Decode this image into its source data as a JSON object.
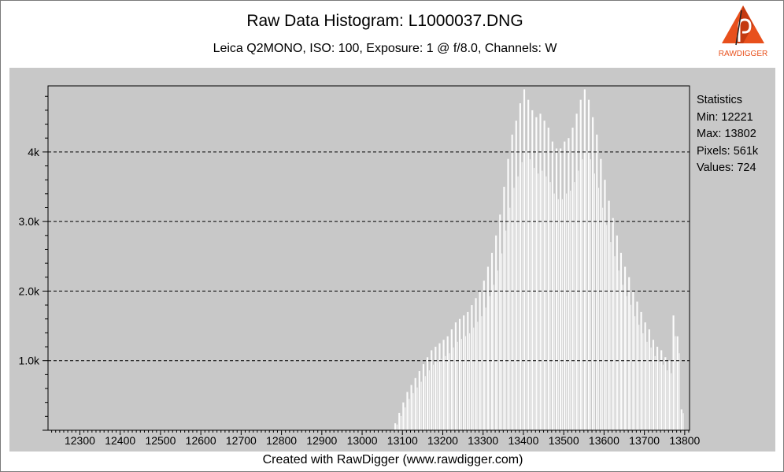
{
  "window": {
    "title": "Raw Data Histogram: L1000037.DNG",
    "subtitle": "Leica Q2MONO, ISO: 100, Exposure: 1 @ f/8.0, Channels: W",
    "footer": "Created with RawDigger (www.rawdigger.com)",
    "logo_text": "RAWDIGGER"
  },
  "statistics": {
    "heading": "Statistics",
    "min": "Min: 12221",
    "max": "Max: 13802",
    "pixels": "Pixels: 561k",
    "values": "Values: 724"
  },
  "colors": {
    "plot_background": "#c8c8c8",
    "bars": "#ffffff",
    "logo": "#e8501c"
  },
  "chart_data": {
    "type": "bar",
    "title": "Raw Data Histogram: L1000037.DNG",
    "subtitle": "Leica Q2MONO, ISO: 100, Exposure: 1 @ f/8.0, Channels: W",
    "x_ticks": [
      12300,
      12400,
      12500,
      12600,
      12700,
      12800,
      12900,
      13000,
      13100,
      13200,
      13300,
      13400,
      13500,
      13600,
      13700,
      13800
    ],
    "y_ticks": [
      {
        "value": 1000,
        "label": "1.0k"
      },
      {
        "value": 2000,
        "label": "2.0k"
      },
      {
        "value": 3000,
        "label": "3.0k"
      },
      {
        "value": 4000,
        "label": "4k"
      }
    ],
    "xlim": [
      12221,
      13812
    ],
    "ylim": [
      0,
      4950
    ],
    "grid": "horizontal dashed at y ticks",
    "x": [
      13085,
      13095,
      13105,
      13115,
      13125,
      13135,
      13145,
      13155,
      13165,
      13175,
      13185,
      13195,
      13205,
      13215,
      13225,
      13235,
      13245,
      13255,
      13265,
      13275,
      13285,
      13295,
      13305,
      13315,
      13325,
      13335,
      13345,
      13355,
      13365,
      13375,
      13385,
      13395,
      13405,
      13415,
      13425,
      13435,
      13445,
      13455,
      13465,
      13475,
      13485,
      13495,
      13505,
      13515,
      13525,
      13535,
      13545,
      13555,
      13565,
      13575,
      13585,
      13595,
      13605,
      13615,
      13625,
      13635,
      13645,
      13655,
      13665,
      13675,
      13685,
      13695,
      13705,
      13715,
      13725,
      13735,
      13745,
      13755,
      13765,
      13775,
      13785,
      13795
    ],
    "values": [
      100,
      250,
      400,
      550,
      650,
      750,
      850,
      950,
      1050,
      1150,
      1200,
      1250,
      1300,
      1350,
      1450,
      1550,
      1600,
      1650,
      1700,
      1800,
      1900,
      2000,
      2150,
      2350,
      2550,
      2800,
      3100,
      3500,
      3900,
      4250,
      4450,
      4700,
      4900,
      4750,
      4600,
      4500,
      4550,
      4450,
      4350,
      4150,
      4050,
      4050,
      4150,
      4200,
      4350,
      4550,
      4750,
      4900,
      4750,
      4500,
      4250,
      3900,
      3600,
      3300,
      3050,
      2800,
      2550,
      2350,
      2200,
      2000,
      1850,
      1700,
      1550,
      1450,
      1300,
      1200,
      1150,
      1050,
      1000,
      1650,
      1350,
      300
    ]
  }
}
